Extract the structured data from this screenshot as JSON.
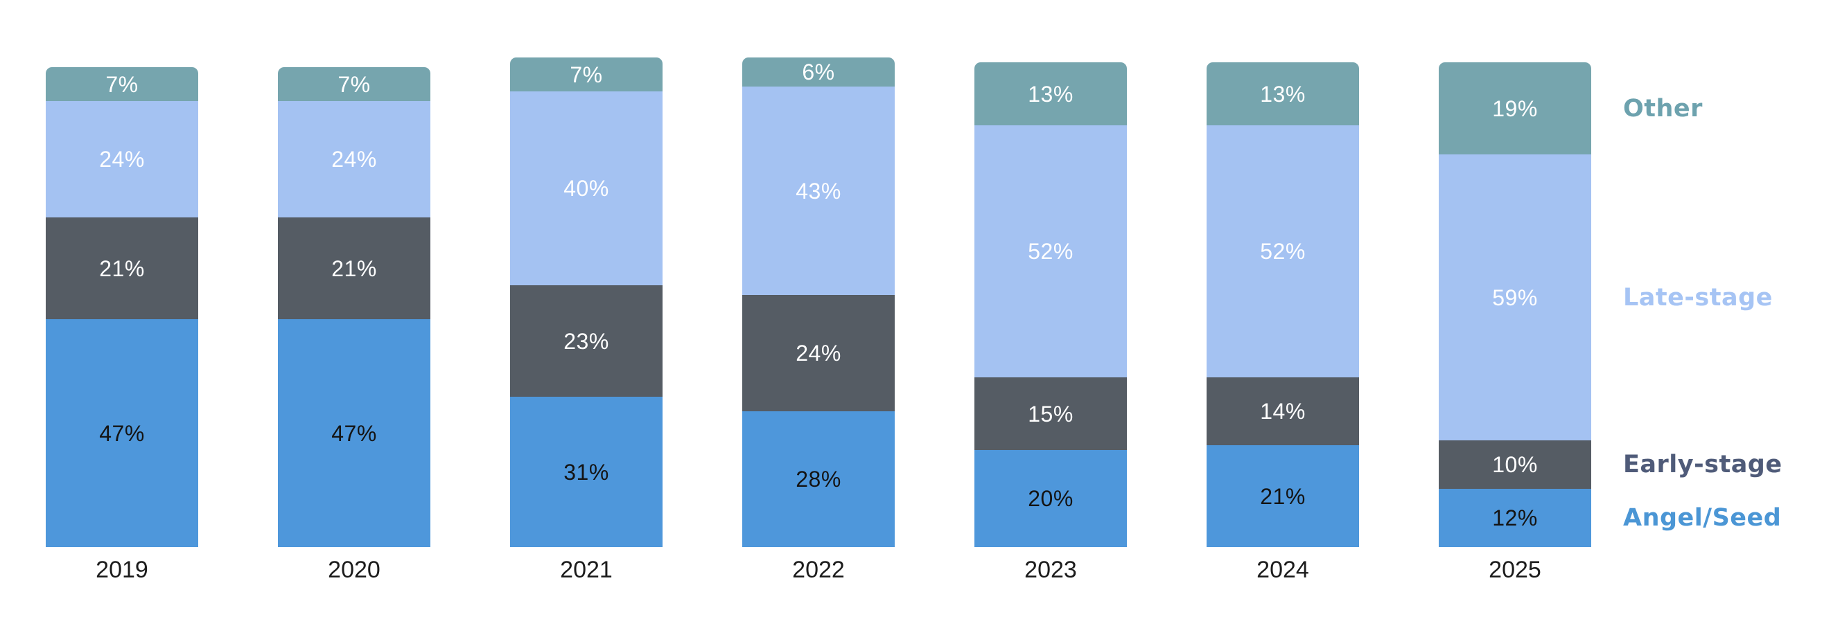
{
  "chart_data": {
    "type": "bar",
    "stacked": true,
    "orientation": "vertical",
    "title": "",
    "xlabel": "",
    "ylabel": "",
    "grid": false,
    "axis_lines": false,
    "legend_position": "right",
    "value_suffix": "%",
    "categories": [
      "2019",
      "2020",
      "2021",
      "2022",
      "2023",
      "2024",
      "2025"
    ],
    "series": [
      {
        "name": "Angel/Seed",
        "values": [
          47,
          47,
          31,
          28,
          20,
          21,
          12
        ],
        "color": "#4E97DB",
        "label_color": "#141414",
        "legend_text_color": "#4B96D5"
      },
      {
        "name": "Early-stage",
        "values": [
          21,
          21,
          23,
          24,
          15,
          14,
          10
        ],
        "color": "#555C64",
        "label_color": "#ffffff",
        "legend_text_color": "#4F5B79"
      },
      {
        "name": "Late-stage",
        "values": [
          24,
          24,
          40,
          43,
          52,
          52,
          59
        ],
        "color": "#A4C2F2",
        "label_color": "#ffffff",
        "legend_text_color": "#A6C4F4"
      },
      {
        "name": "Other",
        "values": [
          7,
          7,
          7,
          6,
          13,
          13,
          19
        ],
        "color": "#76A5AE",
        "label_color": "#ffffff",
        "legend_text_color": "#6DA2AE"
      }
    ]
  }
}
